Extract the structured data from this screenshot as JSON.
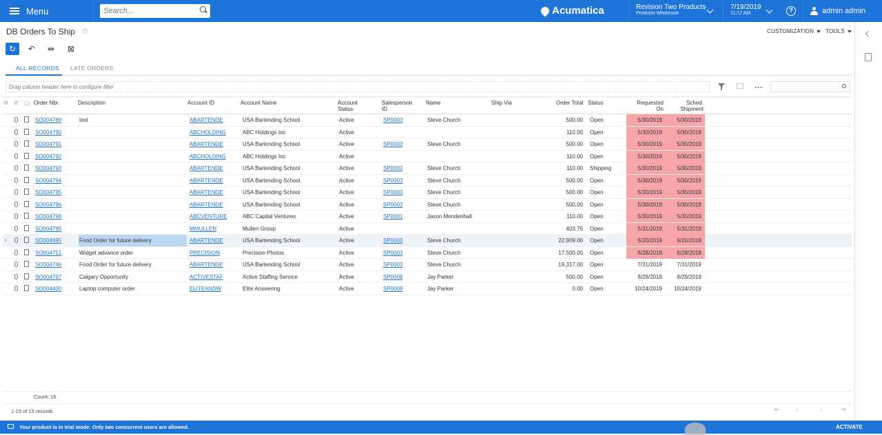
{
  "topbar": {
    "menu_label": "Menu",
    "search_placeholder": "Search...",
    "logo_text": "Acumatica",
    "company_name": "Revision Two Products",
    "company_branch": "Products Wholesale",
    "date": "7/19/2019",
    "time": "11:17 AM",
    "help_label": "?",
    "user_name": "admin admin"
  },
  "page": {
    "title": "DB Orders To Ship",
    "customization_label": "CUSTOMIZATION",
    "tools_label": "TOOLS"
  },
  "toolbar": {
    "refresh_glyph": "↻",
    "undo_glyph": "↶",
    "fit_glyph": "⇹",
    "export_glyph": "⊠"
  },
  "tabs": [
    {
      "label": "ALL RECORDS",
      "active": true
    },
    {
      "label": "LATE ORDERS",
      "active": false
    }
  ],
  "filter": {
    "hint": "Drag column header here to configure filter",
    "more_label": "..."
  },
  "grid": {
    "columns": {
      "order_nbr": "Order Nbr.",
      "description": "Description",
      "account_id": "Account ID",
      "account_name": "Account Name",
      "account_status_1": "Account",
      "account_status_2": "Status",
      "salesperson_1": "Salesperson",
      "salesperson_2": "ID",
      "name": "Name",
      "ship_via": "Ship Via",
      "order_total": "Order Total",
      "status": "Status",
      "requested_1": "Requested",
      "requested_2": "On",
      "sched_1": "Sched.",
      "sched_2": "Shipment"
    },
    "rows": [
      {
        "order": "SO004789",
        "desc": "test",
        "acct": "ABARTENDE",
        "acct_name": "USA Bartending School",
        "acct_status": "Active",
        "sp": "SP0003",
        "name": "Steve Church",
        "total": "500.00",
        "status": "Open",
        "req": "5/30/2019",
        "sched": "5/30/2019",
        "late": true
      },
      {
        "order": "SO004790",
        "desc": "",
        "acct": "ABCHOLDING",
        "acct_name": "ABC Holdings Inc",
        "acct_status": "Active",
        "sp": "",
        "name": "",
        "total": "110.00",
        "status": "Open",
        "req": "5/30/2019",
        "sched": "5/30/2019",
        "late": true
      },
      {
        "order": "SO004791",
        "desc": "",
        "acct": "ABARTENDE",
        "acct_name": "USA Bartending School",
        "acct_status": "Active",
        "sp": "SP0003",
        "name": "Steve Church",
        "total": "500.00",
        "status": "Open",
        "req": "5/30/2019",
        "sched": "5/30/2019",
        "late": true
      },
      {
        "order": "SO004792",
        "desc": "",
        "acct": "ABCHOLDING",
        "acct_name": "ABC Holdings Inc",
        "acct_status": "Active",
        "sp": "",
        "name": "",
        "total": "110.00",
        "status": "Open",
        "req": "5/30/2019",
        "sched": "5/30/2019",
        "late": true
      },
      {
        "order": "SO004793",
        "desc": "",
        "acct": "ABARTENDE",
        "acct_name": "USA Bartending School",
        "acct_status": "Active",
        "sp": "SP0003",
        "name": "Steve Church",
        "total": "110.00",
        "status": "Shipping",
        "req": "5/30/2019",
        "sched": "5/30/2019",
        "late": true
      },
      {
        "order": "SO004794",
        "desc": "",
        "acct": "ABARTENDE",
        "acct_name": "USA Bartending School",
        "acct_status": "Active",
        "sp": "SP0003",
        "name": "Steve Church",
        "total": "500.00",
        "status": "Open",
        "req": "5/30/2019",
        "sched": "5/30/2019",
        "late": true
      },
      {
        "order": "SO004795",
        "desc": "",
        "acct": "ABARTENDE",
        "acct_name": "USA Bartending School",
        "acct_status": "Active",
        "sp": "SP0003",
        "name": "Steve Church",
        "total": "500.00",
        "status": "Open",
        "req": "5/30/2019",
        "sched": "5/30/2019",
        "late": true
      },
      {
        "order": "SO004796",
        "desc": "",
        "acct": "ABARTENDE",
        "acct_name": "USA Bartending School",
        "acct_status": "Active",
        "sp": "SP0003",
        "name": "Steve Church",
        "total": "500.00",
        "status": "Open",
        "req": "5/30/2019",
        "sched": "5/30/2019",
        "late": true
      },
      {
        "order": "SO004798",
        "desc": "",
        "acct": "ABCVENTURE",
        "acct_name": "ABC Capital Ventures",
        "acct_status": "Active",
        "sp": "SP0001",
        "name": "Jason Mendenhall",
        "total": "110.00",
        "status": "Open",
        "req": "5/30/2019",
        "sched": "5/30/2019",
        "late": true
      },
      {
        "order": "SO004799",
        "desc": "",
        "acct": "MMULLEN",
        "acct_name": "Mullen Group",
        "acct_status": "Active",
        "sp": "",
        "name": "",
        "total": "403.75",
        "status": "Open",
        "req": "5/31/2019",
        "sched": "5/31/2019",
        "late": true
      },
      {
        "order": "SO004695",
        "desc": "Food Order for future delivery",
        "acct": "ABARTENDE",
        "acct_name": "USA Bartending School",
        "acct_status": "Active",
        "sp": "SP0003",
        "name": "Steve Church",
        "total": "22,909.00",
        "status": "Open",
        "req": "6/20/2019",
        "sched": "6/20/2019",
        "late": true,
        "selected": true
      },
      {
        "order": "SO004751",
        "desc": "Widget advance order",
        "acct": "PRECISION",
        "acct_name": "Precision Photos",
        "acct_status": "Active",
        "sp": "SP0003",
        "name": "Steve Church",
        "total": "17,500.00",
        "status": "Open",
        "req": "6/28/2019",
        "sched": "6/28/2019",
        "late": true
      },
      {
        "order": "SO004746",
        "desc": "Food Order for future delivery",
        "acct": "ABARTENDE",
        "acct_name": "USA Bartending School",
        "acct_status": "Active",
        "sp": "SP0003",
        "name": "Steve Church",
        "total": "19,317.00",
        "status": "Open",
        "req": "7/31/2019",
        "sched": "7/31/2019",
        "late": false
      },
      {
        "order": "SO004797",
        "desc": "Calgary Opportunity",
        "acct": "ACTIVESTAF",
        "acct_name": "Active Staffing Service",
        "acct_status": "Active",
        "sp": "SP0008",
        "name": "Jay Parker",
        "total": "500.00",
        "status": "Open",
        "req": "8/29/2019",
        "sched": "8/29/2019",
        "late": false
      },
      {
        "order": "SO004400",
        "desc": "Laptop computer order",
        "acct": "ELITEANSW",
        "acct_name": "Elite Answering",
        "acct_status": "Active",
        "sp": "SP0008",
        "name": "Jay Parker",
        "total": "0.00",
        "status": "Open",
        "req": "10/24/2019",
        "sched": "10/24/2019",
        "late": false
      }
    ]
  },
  "footer": {
    "count": "Count: 15",
    "records": "1-15 of 15 records",
    "trial_text": "Your product is in trial mode. Only two concurrent users are allowed.",
    "activate_label": "ACTIVATE"
  },
  "colors": {
    "brand": "#1e74d8",
    "late_highlight": "#f6a5a9",
    "selected_cell": "#bdd7f3"
  }
}
